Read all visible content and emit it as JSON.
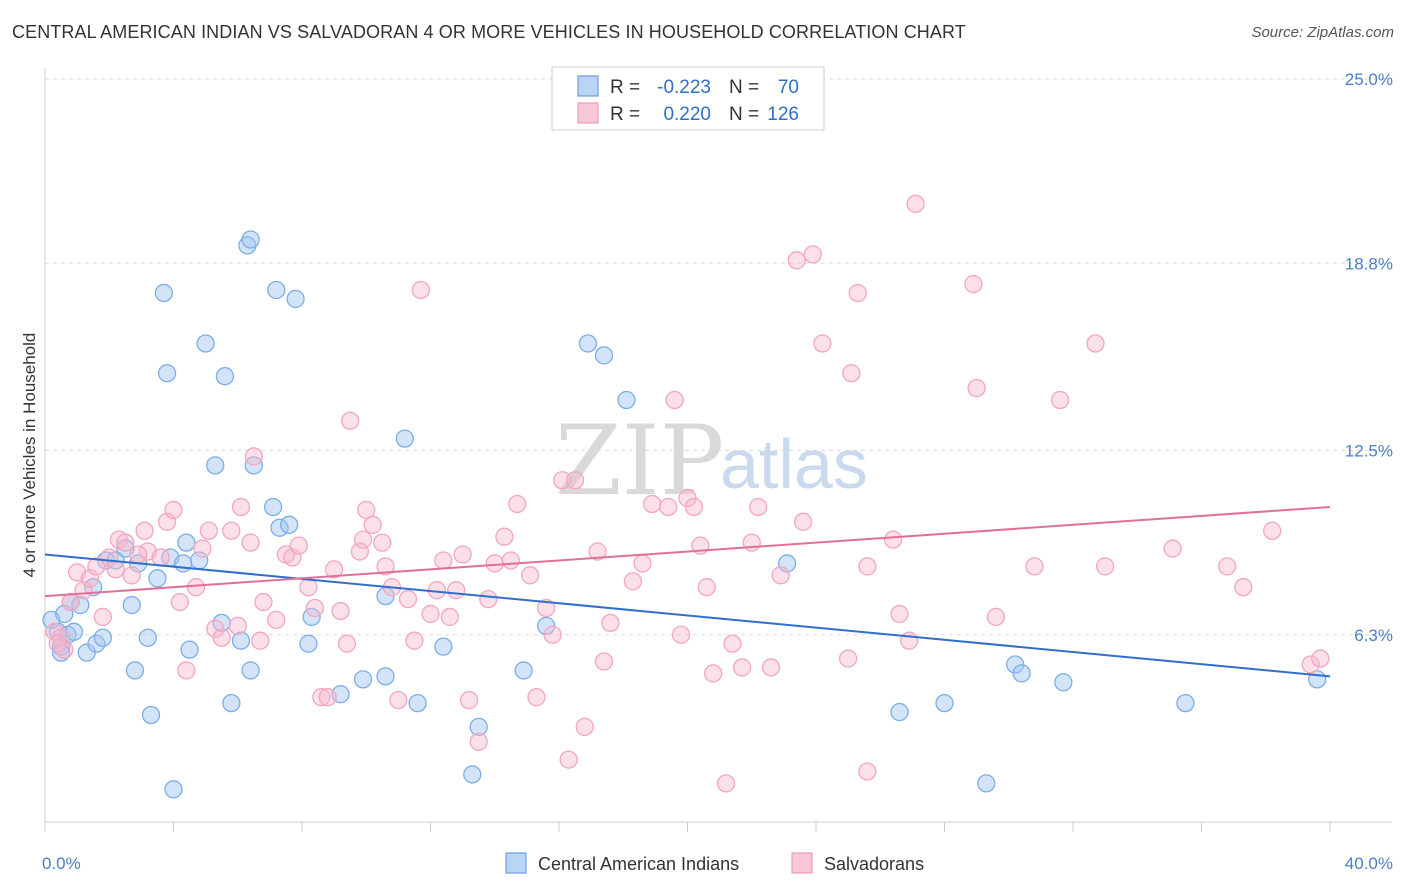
{
  "title": "CENTRAL AMERICAN INDIAN VS SALVADORAN 4 OR MORE VEHICLES IN HOUSEHOLD CORRELATION CHART",
  "source": "Source: ZipAtlas.com",
  "watermark": {
    "zip": "ZIP",
    "atlas": "atlas"
  },
  "legend": {
    "rows": [
      {
        "r_label": "R =",
        "r_value": "-0.223",
        "n_label": "N =",
        "n_value": "70"
      },
      {
        "r_label": "R =",
        "r_value": "0.220",
        "n_label": "N =",
        "n_value": "126"
      }
    ]
  },
  "chart_data": {
    "type": "scatter",
    "title": "CENTRAL AMERICAN INDIAN VS SALVADORAN 4 OR MORE VEHICLES IN HOUSEHOLD CORRELATION CHART",
    "xlabel": "",
    "ylabel": "4 or more Vehicles in Household",
    "xlim": [
      0,
      40
    ],
    "ylim": [
      0,
      25
    ],
    "x_tick_labels": [
      "0.0%",
      "40.0%"
    ],
    "y_tick_values": [
      6.3,
      12.5,
      18.8,
      25.0
    ],
    "y_tick_labels": [
      "6.3%",
      "12.5%",
      "18.8%",
      "25.0%"
    ],
    "grid": true,
    "legend_position": "top-center",
    "series": [
      {
        "name": "Central American Indians",
        "color": "#7baee8",
        "line_color": "#2f6fcc",
        "trend": {
          "x": [
            0,
            40
          ],
          "y": [
            9.0,
            4.9
          ]
        },
        "points": [
          [
            0.2,
            6.8
          ],
          [
            0.4,
            6.4
          ],
          [
            0.5,
            5.9
          ],
          [
            0.6,
            7.0
          ],
          [
            0.7,
            6.3
          ],
          [
            0.8,
            7.4
          ],
          [
            0.9,
            6.4
          ],
          [
            1.1,
            7.3
          ],
          [
            1.3,
            5.7
          ],
          [
            1.5,
            7.9
          ],
          [
            1.6,
            6.0
          ],
          [
            1.8,
            6.2
          ],
          [
            1.9,
            8.8
          ],
          [
            2.2,
            8.8
          ],
          [
            2.5,
            9.2
          ],
          [
            2.7,
            7.3
          ],
          [
            2.8,
            5.1
          ],
          [
            2.9,
            8.7
          ],
          [
            3.2,
            6.2
          ],
          [
            3.3,
            3.6
          ],
          [
            3.5,
            8.2
          ],
          [
            3.7,
            17.8
          ],
          [
            3.8,
            15.1
          ],
          [
            3.9,
            8.9
          ],
          [
            4.0,
            1.1
          ],
          [
            4.3,
            8.7
          ],
          [
            4.4,
            9.4
          ],
          [
            4.5,
            5.8
          ],
          [
            4.8,
            8.8
          ],
          [
            5.0,
            16.1
          ],
          [
            5.3,
            12.0
          ],
          [
            5.5,
            6.7
          ],
          [
            5.6,
            15.0
          ],
          [
            5.8,
            4.0
          ],
          [
            6.1,
            6.1
          ],
          [
            6.4,
            5.1
          ],
          [
            6.5,
            12.0
          ],
          [
            6.3,
            19.4
          ],
          [
            6.4,
            19.6
          ],
          [
            7.1,
            10.6
          ],
          [
            7.2,
            17.9
          ],
          [
            7.3,
            9.9
          ],
          [
            7.6,
            10.0
          ],
          [
            7.8,
            17.6
          ],
          [
            8.2,
            6.0
          ],
          [
            8.3,
            6.9
          ],
          [
            9.2,
            4.3
          ],
          [
            9.9,
            4.8
          ],
          [
            10.6,
            4.9
          ],
          [
            10.6,
            7.6
          ],
          [
            11.2,
            12.9
          ],
          [
            11.6,
            4.0
          ],
          [
            12.4,
            5.9
          ],
          [
            13.3,
            1.6
          ],
          [
            13.5,
            3.2
          ],
          [
            14.9,
            5.1
          ],
          [
            15.6,
            6.6
          ],
          [
            16.9,
            16.1
          ],
          [
            17.4,
            15.7
          ],
          [
            18.1,
            14.2
          ],
          [
            23.1,
            8.7
          ],
          [
            26.6,
            3.7
          ],
          [
            28.0,
            4.0
          ],
          [
            29.3,
            1.3
          ],
          [
            30.2,
            5.3
          ],
          [
            30.4,
            5.0
          ],
          [
            31.7,
            4.7
          ],
          [
            35.5,
            4.0
          ],
          [
            39.6,
            4.8
          ],
          [
            0.5,
            5.7
          ]
        ]
      },
      {
        "name": "Salvadorans",
        "color": "#f3a6bf",
        "line_color": "#e0709a",
        "trend": {
          "x": [
            0,
            40
          ],
          "y": [
            7.6,
            10.6
          ]
        },
        "points": [
          [
            0.3,
            6.4
          ],
          [
            0.5,
            6.2
          ],
          [
            0.6,
            5.8
          ],
          [
            0.8,
            7.4
          ],
          [
            1.0,
            8.4
          ],
          [
            1.2,
            7.8
          ],
          [
            1.4,
            8.2
          ],
          [
            1.6,
            8.6
          ],
          [
            1.8,
            6.9
          ],
          [
            2.0,
            8.9
          ],
          [
            2.2,
            8.5
          ],
          [
            2.3,
            9.5
          ],
          [
            2.5,
            9.4
          ],
          [
            2.7,
            8.3
          ],
          [
            3.1,
            9.8
          ],
          [
            3.2,
            9.1
          ],
          [
            3.6,
            8.9
          ],
          [
            3.8,
            10.1
          ],
          [
            4.0,
            10.5
          ],
          [
            4.2,
            7.4
          ],
          [
            4.4,
            5.1
          ],
          [
            4.7,
            7.9
          ],
          [
            4.9,
            9.2
          ],
          [
            5.1,
            9.8
          ],
          [
            5.3,
            6.5
          ],
          [
            5.5,
            6.2
          ],
          [
            5.8,
            9.8
          ],
          [
            6.0,
            6.6
          ],
          [
            6.1,
            10.6
          ],
          [
            6.4,
            9.4
          ],
          [
            6.5,
            12.3
          ],
          [
            6.7,
            6.1
          ],
          [
            6.8,
            7.4
          ],
          [
            7.2,
            6.8
          ],
          [
            7.5,
            9.0
          ],
          [
            7.7,
            8.9
          ],
          [
            7.9,
            9.3
          ],
          [
            8.2,
            7.9
          ],
          [
            8.4,
            7.2
          ],
          [
            8.6,
            4.2
          ],
          [
            8.8,
            4.2
          ],
          [
            9.0,
            8.5
          ],
          [
            9.2,
            7.1
          ],
          [
            9.4,
            6.0
          ],
          [
            9.5,
            13.5
          ],
          [
            9.8,
            9.1
          ],
          [
            10.0,
            10.5
          ],
          [
            10.2,
            10.0
          ],
          [
            10.5,
            9.4
          ],
          [
            10.6,
            8.6
          ],
          [
            10.8,
            7.9
          ],
          [
            11.0,
            4.1
          ],
          [
            11.3,
            7.5
          ],
          [
            11.5,
            6.1
          ],
          [
            11.7,
            17.9
          ],
          [
            12.0,
            7.0
          ],
          [
            12.2,
            7.8
          ],
          [
            12.4,
            8.8
          ],
          [
            12.6,
            6.9
          ],
          [
            12.8,
            7.8
          ],
          [
            13.0,
            9.0
          ],
          [
            13.2,
            4.1
          ],
          [
            13.5,
            2.7
          ],
          [
            13.8,
            7.5
          ],
          [
            14.0,
            8.7
          ],
          [
            14.3,
            9.6
          ],
          [
            14.5,
            8.8
          ],
          [
            14.7,
            10.7
          ],
          [
            15.1,
            8.3
          ],
          [
            15.3,
            4.2
          ],
          [
            15.6,
            7.2
          ],
          [
            15.8,
            6.3
          ],
          [
            16.1,
            11.5
          ],
          [
            16.3,
            2.1
          ],
          [
            16.5,
            11.5
          ],
          [
            16.8,
            3.2
          ],
          [
            17.2,
            9.1
          ],
          [
            17.4,
            5.4
          ],
          [
            17.6,
            6.7
          ],
          [
            18.3,
            8.1
          ],
          [
            18.6,
            8.7
          ],
          [
            18.9,
            10.7
          ],
          [
            19.4,
            10.6
          ],
          [
            19.6,
            14.2
          ],
          [
            19.8,
            6.3
          ],
          [
            20.0,
            10.9
          ],
          [
            20.2,
            10.6
          ],
          [
            20.4,
            9.3
          ],
          [
            20.6,
            7.9
          ],
          [
            20.8,
            5.0
          ],
          [
            21.2,
            1.3
          ],
          [
            21.4,
            6.0
          ],
          [
            21.7,
            5.2
          ],
          [
            22.0,
            9.4
          ],
          [
            22.2,
            10.6
          ],
          [
            22.6,
            5.2
          ],
          [
            22.9,
            8.3
          ],
          [
            23.4,
            18.9
          ],
          [
            23.6,
            10.1
          ],
          [
            23.9,
            19.1
          ],
          [
            24.2,
            16.1
          ],
          [
            25.0,
            5.5
          ],
          [
            25.1,
            15.1
          ],
          [
            25.3,
            17.8
          ],
          [
            25.6,
            8.6
          ],
          [
            25.6,
            1.7
          ],
          [
            26.4,
            9.5
          ],
          [
            26.6,
            7.0
          ],
          [
            26.9,
            6.1
          ],
          [
            27.1,
            20.8
          ],
          [
            29.0,
            14.6
          ],
          [
            28.9,
            18.1
          ],
          [
            29.6,
            6.9
          ],
          [
            30.8,
            8.6
          ],
          [
            31.6,
            14.2
          ],
          [
            32.7,
            16.1
          ],
          [
            33.0,
            8.6
          ],
          [
            35.1,
            9.2
          ],
          [
            36.8,
            8.6
          ],
          [
            37.3,
            7.9
          ],
          [
            38.2,
            9.8
          ],
          [
            39.4,
            5.3
          ],
          [
            39.7,
            5.5
          ],
          [
            0.4,
            6.0
          ],
          [
            2.9,
            9.0
          ],
          [
            9.9,
            9.5
          ]
        ]
      }
    ]
  },
  "bottom_legend": {
    "items": [
      "Central American Indians",
      "Salvadorans"
    ]
  }
}
